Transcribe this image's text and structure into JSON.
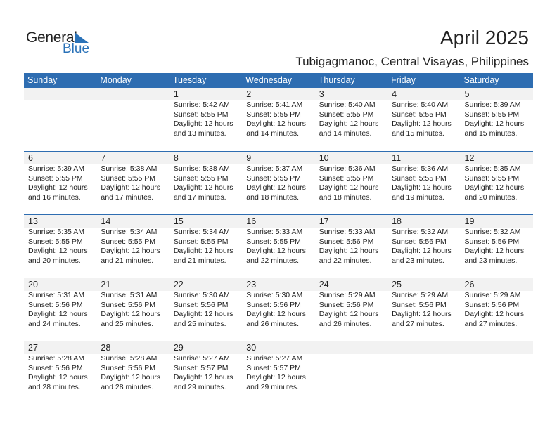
{
  "logo": {
    "general": "General",
    "blue": "Blue"
  },
  "title": "April 2025",
  "subtitle": "Tubigagmanoc, Central Visayas, Philippines",
  "colors": {
    "header": "#2e6db1",
    "band": "#f2f2f2",
    "logo_blue": "#2a72b8"
  },
  "weekdays": [
    "Sunday",
    "Monday",
    "Tuesday",
    "Wednesday",
    "Thursday",
    "Friday",
    "Saturday"
  ],
  "days": [
    null,
    null,
    {
      "day": "1",
      "sunrise": "Sunrise: 5:42 AM",
      "sunset": "Sunset: 5:55 PM",
      "daylight": "Daylight: 12 hours",
      "minutes": "and 13 minutes."
    },
    {
      "day": "2",
      "sunrise": "Sunrise: 5:41 AM",
      "sunset": "Sunset: 5:55 PM",
      "daylight": "Daylight: 12 hours",
      "minutes": "and 14 minutes."
    },
    {
      "day": "3",
      "sunrise": "Sunrise: 5:40 AM",
      "sunset": "Sunset: 5:55 PM",
      "daylight": "Daylight: 12 hours",
      "minutes": "and 14 minutes."
    },
    {
      "day": "4",
      "sunrise": "Sunrise: 5:40 AM",
      "sunset": "Sunset: 5:55 PM",
      "daylight": "Daylight: 12 hours",
      "minutes": "and 15 minutes."
    },
    {
      "day": "5",
      "sunrise": "Sunrise: 5:39 AM",
      "sunset": "Sunset: 5:55 PM",
      "daylight": "Daylight: 12 hours",
      "minutes": "and 15 minutes."
    },
    {
      "day": "6",
      "sunrise": "Sunrise: 5:39 AM",
      "sunset": "Sunset: 5:55 PM",
      "daylight": "Daylight: 12 hours",
      "minutes": "and 16 minutes."
    },
    {
      "day": "7",
      "sunrise": "Sunrise: 5:38 AM",
      "sunset": "Sunset: 5:55 PM",
      "daylight": "Daylight: 12 hours",
      "minutes": "and 17 minutes."
    },
    {
      "day": "8",
      "sunrise": "Sunrise: 5:38 AM",
      "sunset": "Sunset: 5:55 PM",
      "daylight": "Daylight: 12 hours",
      "minutes": "and 17 minutes."
    },
    {
      "day": "9",
      "sunrise": "Sunrise: 5:37 AM",
      "sunset": "Sunset: 5:55 PM",
      "daylight": "Daylight: 12 hours",
      "minutes": "and 18 minutes."
    },
    {
      "day": "10",
      "sunrise": "Sunrise: 5:36 AM",
      "sunset": "Sunset: 5:55 PM",
      "daylight": "Daylight: 12 hours",
      "minutes": "and 18 minutes."
    },
    {
      "day": "11",
      "sunrise": "Sunrise: 5:36 AM",
      "sunset": "Sunset: 5:55 PM",
      "daylight": "Daylight: 12 hours",
      "minutes": "and 19 minutes."
    },
    {
      "day": "12",
      "sunrise": "Sunrise: 5:35 AM",
      "sunset": "Sunset: 5:55 PM",
      "daylight": "Daylight: 12 hours",
      "minutes": "and 20 minutes."
    },
    {
      "day": "13",
      "sunrise": "Sunrise: 5:35 AM",
      "sunset": "Sunset: 5:55 PM",
      "daylight": "Daylight: 12 hours",
      "minutes": "and 20 minutes."
    },
    {
      "day": "14",
      "sunrise": "Sunrise: 5:34 AM",
      "sunset": "Sunset: 5:55 PM",
      "daylight": "Daylight: 12 hours",
      "minutes": "and 21 minutes."
    },
    {
      "day": "15",
      "sunrise": "Sunrise: 5:34 AM",
      "sunset": "Sunset: 5:55 PM",
      "daylight": "Daylight: 12 hours",
      "minutes": "and 21 minutes."
    },
    {
      "day": "16",
      "sunrise": "Sunrise: 5:33 AM",
      "sunset": "Sunset: 5:55 PM",
      "daylight": "Daylight: 12 hours",
      "minutes": "and 22 minutes."
    },
    {
      "day": "17",
      "sunrise": "Sunrise: 5:33 AM",
      "sunset": "Sunset: 5:56 PM",
      "daylight": "Daylight: 12 hours",
      "minutes": "and 22 minutes."
    },
    {
      "day": "18",
      "sunrise": "Sunrise: 5:32 AM",
      "sunset": "Sunset: 5:56 PM",
      "daylight": "Daylight: 12 hours",
      "minutes": "and 23 minutes."
    },
    {
      "day": "19",
      "sunrise": "Sunrise: 5:32 AM",
      "sunset": "Sunset: 5:56 PM",
      "daylight": "Daylight: 12 hours",
      "minutes": "and 23 minutes."
    },
    {
      "day": "20",
      "sunrise": "Sunrise: 5:31 AM",
      "sunset": "Sunset: 5:56 PM",
      "daylight": "Daylight: 12 hours",
      "minutes": "and 24 minutes."
    },
    {
      "day": "21",
      "sunrise": "Sunrise: 5:31 AM",
      "sunset": "Sunset: 5:56 PM",
      "daylight": "Daylight: 12 hours",
      "minutes": "and 25 minutes."
    },
    {
      "day": "22",
      "sunrise": "Sunrise: 5:30 AM",
      "sunset": "Sunset: 5:56 PM",
      "daylight": "Daylight: 12 hours",
      "minutes": "and 25 minutes."
    },
    {
      "day": "23",
      "sunrise": "Sunrise: 5:30 AM",
      "sunset": "Sunset: 5:56 PM",
      "daylight": "Daylight: 12 hours",
      "minutes": "and 26 minutes."
    },
    {
      "day": "24",
      "sunrise": "Sunrise: 5:29 AM",
      "sunset": "Sunset: 5:56 PM",
      "daylight": "Daylight: 12 hours",
      "minutes": "and 26 minutes."
    },
    {
      "day": "25",
      "sunrise": "Sunrise: 5:29 AM",
      "sunset": "Sunset: 5:56 PM",
      "daylight": "Daylight: 12 hours",
      "minutes": "and 27 minutes."
    },
    {
      "day": "26",
      "sunrise": "Sunrise: 5:29 AM",
      "sunset": "Sunset: 5:56 PM",
      "daylight": "Daylight: 12 hours",
      "minutes": "and 27 minutes."
    },
    {
      "day": "27",
      "sunrise": "Sunrise: 5:28 AM",
      "sunset": "Sunset: 5:56 PM",
      "daylight": "Daylight: 12 hours",
      "minutes": "and 28 minutes."
    },
    {
      "day": "28",
      "sunrise": "Sunrise: 5:28 AM",
      "sunset": "Sunset: 5:56 PM",
      "daylight": "Daylight: 12 hours",
      "minutes": "and 28 minutes."
    },
    {
      "day": "29",
      "sunrise": "Sunrise: 5:27 AM",
      "sunset": "Sunset: 5:57 PM",
      "daylight": "Daylight: 12 hours",
      "minutes": "and 29 minutes."
    },
    {
      "day": "30",
      "sunrise": "Sunrise: 5:27 AM",
      "sunset": "Sunset: 5:57 PM",
      "daylight": "Daylight: 12 hours",
      "minutes": "and 29 minutes."
    },
    null,
    null,
    null
  ]
}
